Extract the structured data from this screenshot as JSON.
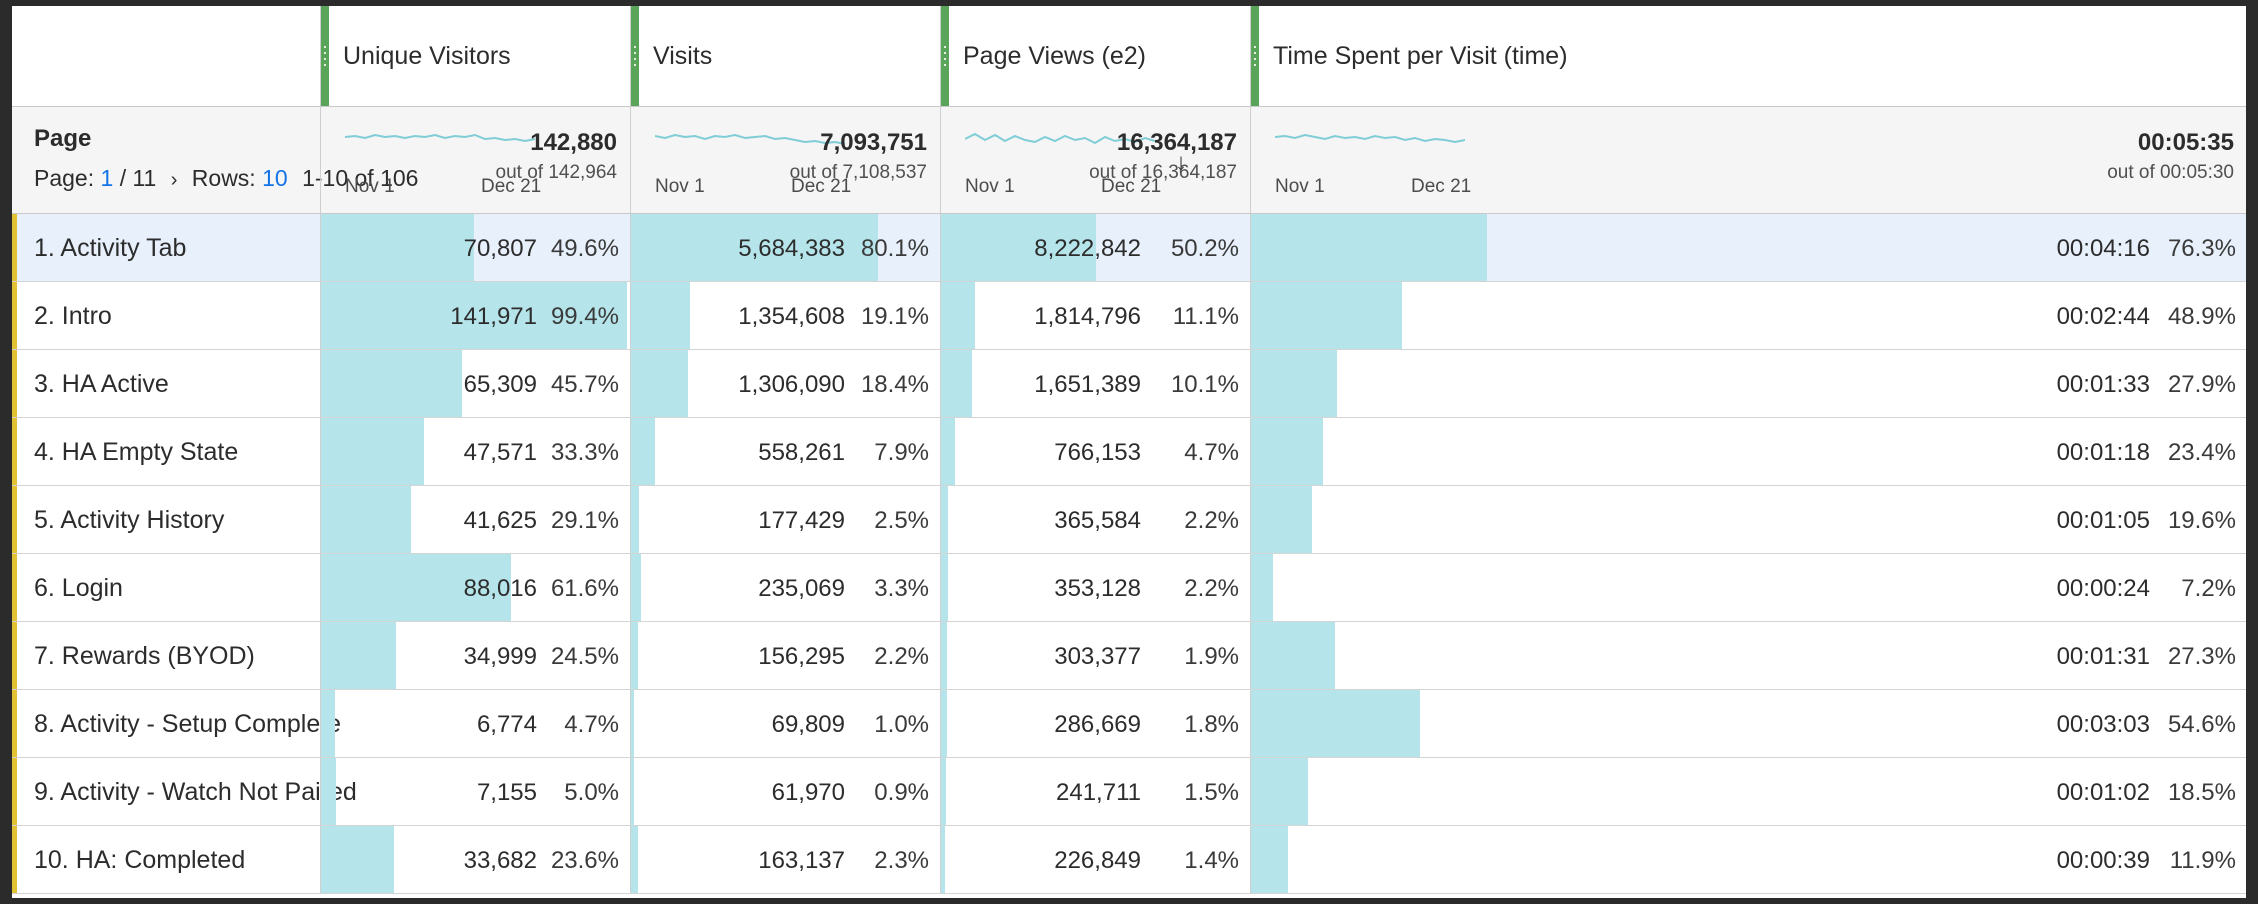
{
  "table": {
    "dimension": {
      "title": "Page",
      "page_label": "Page:",
      "page_current": "1",
      "page_total": "/ 11",
      "rows_label": "Rows:",
      "rows_value": "10",
      "range": "1-10 of 106"
    },
    "columns": [
      {
        "label": "Unique Visitors",
        "total": "142,880",
        "out_of": "out of 142,964",
        "date_start": "Nov 1",
        "date_end": "Dec 21",
        "sorted": false
      },
      {
        "label": "Visits",
        "total": "7,093,751",
        "out_of": "out of 7,108,537",
        "date_start": "Nov 1",
        "date_end": "Dec 21",
        "sorted": false
      },
      {
        "label": "Page Views (e2)",
        "total": "16,364,187",
        "out_of": "out of 16,364,187",
        "date_start": "Nov 1",
        "date_end": "Dec 21",
        "sorted": true,
        "sort_glyph": "↓"
      },
      {
        "label": "Time Spent per Visit (time)",
        "total": "00:05:35",
        "out_of": "out of 00:05:30",
        "date_start": "Nov 1",
        "date_end": "Dec 21",
        "sorted": false
      }
    ],
    "rows": [
      {
        "label": "1.  Activity Tab",
        "selected": true,
        "cells": [
          {
            "value": "70,807",
            "pct": "49.6%",
            "fill": 0.496
          },
          {
            "value": "5,684,383",
            "pct": "80.1%",
            "fill": 0.801
          },
          {
            "value": "8,222,842",
            "pct": "50.2%",
            "fill": 0.502
          },
          {
            "value": "00:04:16",
            "pct": "76.3%",
            "fill": 0.763
          }
        ]
      },
      {
        "label": "2.  Intro",
        "selected": false,
        "cells": [
          {
            "value": "141,971",
            "pct": "99.4%",
            "fill": 0.994
          },
          {
            "value": "1,354,608",
            "pct": "19.1%",
            "fill": 0.191
          },
          {
            "value": "1,814,796",
            "pct": "11.1%",
            "fill": 0.111
          },
          {
            "value": "00:02:44",
            "pct": "48.9%",
            "fill": 0.489
          }
        ]
      },
      {
        "label": "3.  HA Active",
        "selected": false,
        "cells": [
          {
            "value": "65,309",
            "pct": "45.7%",
            "fill": 0.457
          },
          {
            "value": "1,306,090",
            "pct": "18.4%",
            "fill": 0.184
          },
          {
            "value": "1,651,389",
            "pct": "10.1%",
            "fill": 0.101
          },
          {
            "value": "00:01:33",
            "pct": "27.9%",
            "fill": 0.279
          }
        ]
      },
      {
        "label": "4.  HA Empty State",
        "selected": false,
        "cells": [
          {
            "value": "47,571",
            "pct": "33.3%",
            "fill": 0.333
          },
          {
            "value": "558,261",
            "pct": "7.9%",
            "fill": 0.079
          },
          {
            "value": "766,153",
            "pct": "4.7%",
            "fill": 0.047
          },
          {
            "value": "00:01:18",
            "pct": "23.4%",
            "fill": 0.234
          }
        ]
      },
      {
        "label": "5.  Activity History",
        "selected": false,
        "cells": [
          {
            "value": "41,625",
            "pct": "29.1%",
            "fill": 0.291
          },
          {
            "value": "177,429",
            "pct": "2.5%",
            "fill": 0.025
          },
          {
            "value": "365,584",
            "pct": "2.2%",
            "fill": 0.022
          },
          {
            "value": "00:01:05",
            "pct": "19.6%",
            "fill": 0.196
          }
        ]
      },
      {
        "label": "6.  Login",
        "selected": false,
        "cells": [
          {
            "value": "88,016",
            "pct": "61.6%",
            "fill": 0.616
          },
          {
            "value": "235,069",
            "pct": "3.3%",
            "fill": 0.033
          },
          {
            "value": "353,128",
            "pct": "2.2%",
            "fill": 0.022
          },
          {
            "value": "00:00:24",
            "pct": "7.2%",
            "fill": 0.072
          }
        ]
      },
      {
        "label": "7.  Rewards (BYOD)",
        "selected": false,
        "cells": [
          {
            "value": "34,999",
            "pct": "24.5%",
            "fill": 0.245
          },
          {
            "value": "156,295",
            "pct": "2.2%",
            "fill": 0.022
          },
          {
            "value": "303,377",
            "pct": "1.9%",
            "fill": 0.019
          },
          {
            "value": "00:01:31",
            "pct": "27.3%",
            "fill": 0.273
          }
        ]
      },
      {
        "label": "8.  Activity - Setup Complete",
        "selected": false,
        "cells": [
          {
            "value": "6,774",
            "pct": "4.7%",
            "fill": 0.047
          },
          {
            "value": "69,809",
            "pct": "1.0%",
            "fill": 0.01
          },
          {
            "value": "286,669",
            "pct": "1.8%",
            "fill": 0.018
          },
          {
            "value": "00:03:03",
            "pct": "54.6%",
            "fill": 0.546
          }
        ]
      },
      {
        "label": "9.  Activity - Watch Not Paired",
        "selected": false,
        "cells": [
          {
            "value": "7,155",
            "pct": "5.0%",
            "fill": 0.05
          },
          {
            "value": "61,970",
            "pct": "0.9%",
            "fill": 0.009
          },
          {
            "value": "241,711",
            "pct": "1.5%",
            "fill": 0.015
          },
          {
            "value": "00:01:02",
            "pct": "18.5%",
            "fill": 0.185
          }
        ]
      },
      {
        "label": "10.  HA: Completed",
        "selected": false,
        "cells": [
          {
            "value": "33,682",
            "pct": "23.6%",
            "fill": 0.236
          },
          {
            "value": "163,137",
            "pct": "2.3%",
            "fill": 0.023
          },
          {
            "value": "226,849",
            "pct": "1.4%",
            "fill": 0.014
          },
          {
            "value": "00:00:39",
            "pct": "11.9%",
            "fill": 0.119
          }
        ]
      }
    ]
  },
  "colors": {
    "bar": "#b5e5ea",
    "spark": "#7fcdd6",
    "accent": "#e1c233",
    "grip": "#5aa55a",
    "link": "#1473e6",
    "selected_row": "#e7f0fb"
  }
}
